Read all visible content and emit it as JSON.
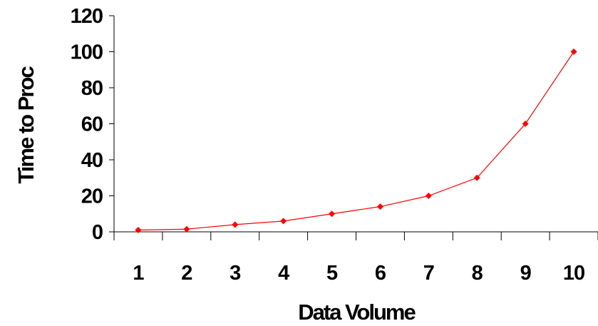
{
  "chart_data": {
    "type": "line",
    "title": "",
    "xlabel": "Data Volume",
    "ylabel": "Time to Proc",
    "categories": [
      "1",
      "2",
      "3",
      "4",
      "5",
      "6",
      "7",
      "8",
      "9",
      "10"
    ],
    "series": [
      {
        "values": [
          1,
          1.5,
          4,
          6,
          10,
          14,
          20,
          30,
          60,
          100
        ],
        "color": "#ff0000",
        "marker": "diamond"
      }
    ],
    "ylim": [
      0,
      120
    ],
    "yticks": [
      "0",
      "20",
      "40",
      "60",
      "80",
      "100",
      "120"
    ],
    "grid": false,
    "legend": "none"
  }
}
